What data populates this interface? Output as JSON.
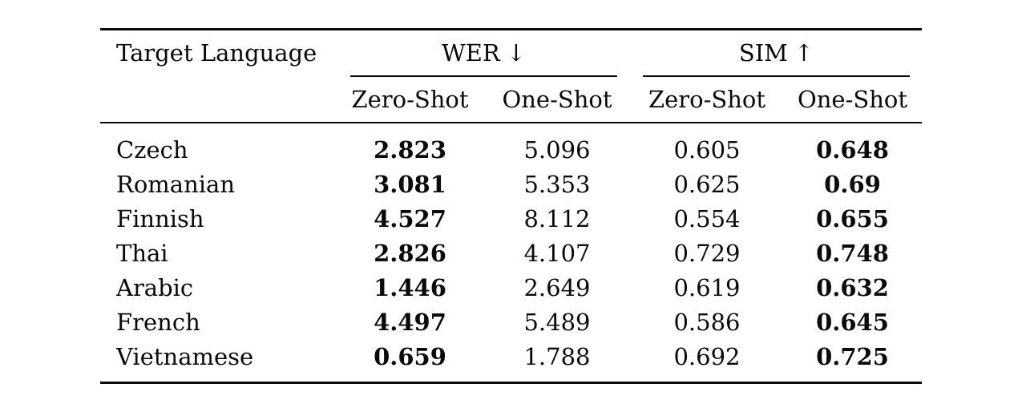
{
  "table": {
    "col1_header": "Target Language",
    "groups": [
      {
        "label": "WER",
        "arrow": "↓"
      },
      {
        "label": "SIM",
        "arrow": "↑"
      }
    ],
    "subheaders": [
      "Zero-Shot",
      "One-Shot",
      "Zero-Shot",
      "One-Shot"
    ],
    "rows": [
      {
        "language": "Czech",
        "wer_zero": "2.823",
        "wer_one": "5.096",
        "sim_zero": "0.605",
        "sim_one": "0.648"
      },
      {
        "language": "Romanian",
        "wer_zero": "3.081",
        "wer_one": "5.353",
        "sim_zero": "0.625",
        "sim_one": "0.69"
      },
      {
        "language": "Finnish",
        "wer_zero": "4.527",
        "wer_one": "8.112",
        "sim_zero": "0.554",
        "sim_one": "0.655"
      },
      {
        "language": "Thai",
        "wer_zero": "2.826",
        "wer_one": "4.107",
        "sim_zero": "0.729",
        "sim_one": "0.748"
      },
      {
        "language": "Arabic",
        "wer_zero": "1.446",
        "wer_one": "2.649",
        "sim_zero": "0.619",
        "sim_one": "0.632"
      },
      {
        "language": "French",
        "wer_zero": "4.497",
        "wer_one": "5.489",
        "sim_zero": "0.586",
        "sim_one": "0.645"
      },
      {
        "language": "Vietnamese",
        "wer_zero": "0.659",
        "wer_one": "1.788",
        "sim_zero": "0.692",
        "sim_one": "0.725"
      }
    ],
    "colors": {
      "text": "#0a0a0a",
      "background": "#ffffff",
      "rule": "#0a0a0a"
    }
  }
}
